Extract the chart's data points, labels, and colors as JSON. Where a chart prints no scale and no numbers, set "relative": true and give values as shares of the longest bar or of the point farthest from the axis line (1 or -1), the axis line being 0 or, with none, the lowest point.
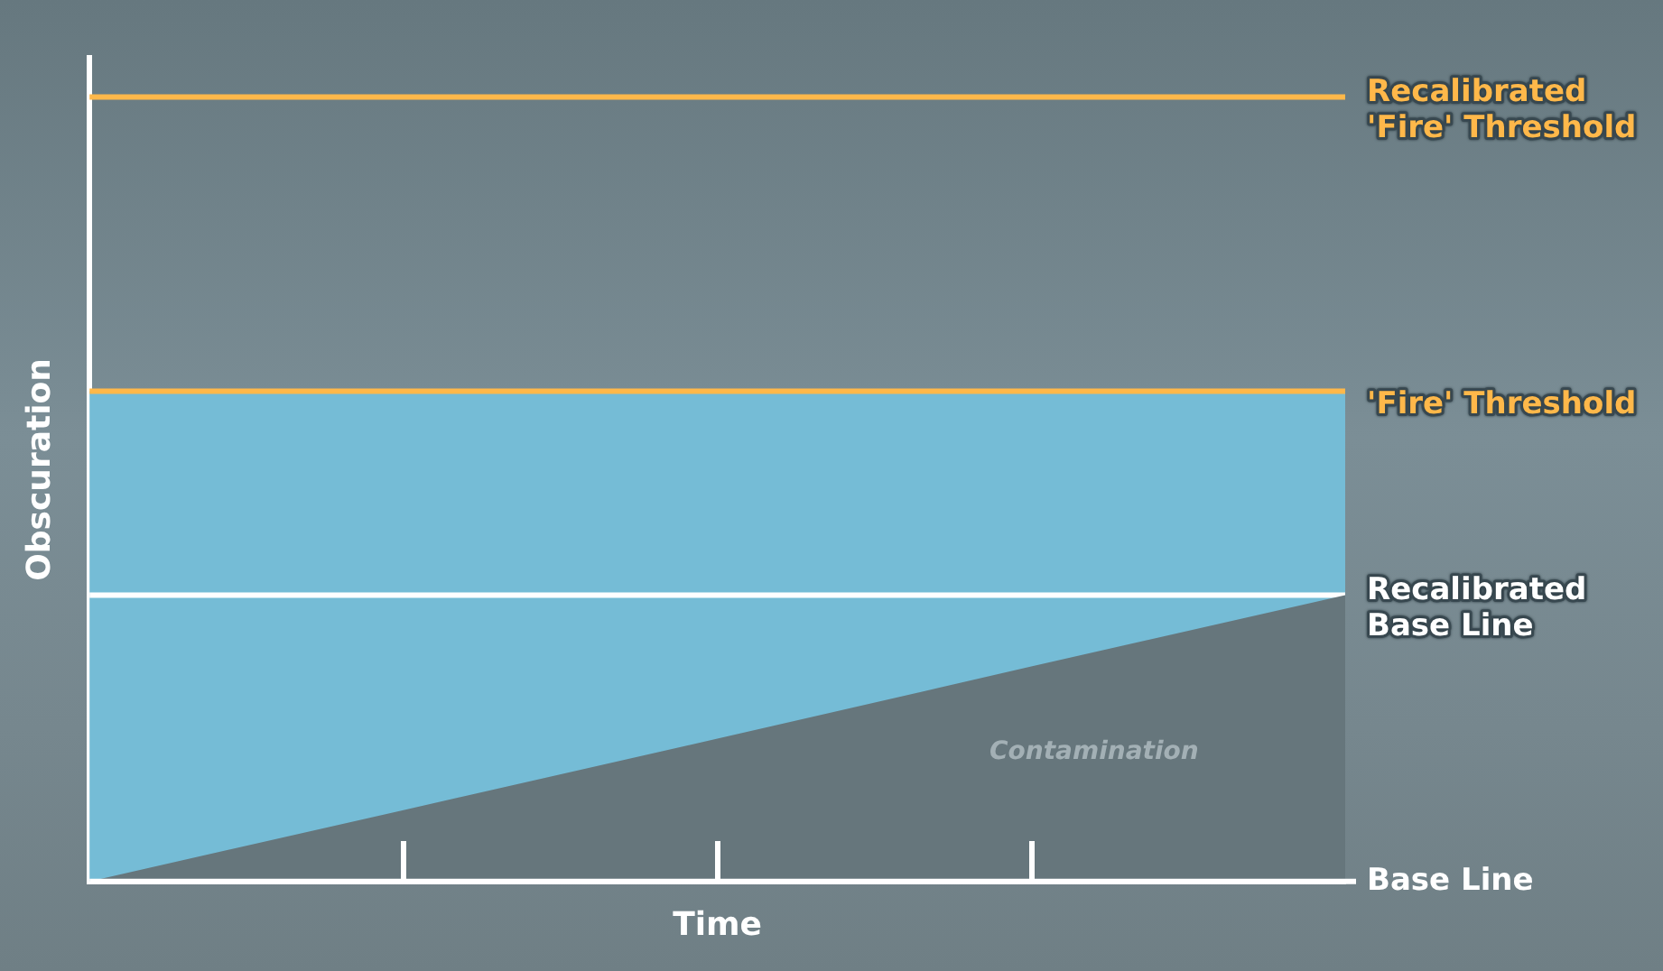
{
  "chart_data": {
    "type": "line",
    "relative": true,
    "xlabel": "Time",
    "ylabel": "Obscuration",
    "categories": [
      null,
      null,
      null,
      null,
      null
    ],
    "series": [
      {
        "name": "Contamination",
        "type": "area",
        "color": "#66767c",
        "values": [
          0,
          0.091,
          0.182,
          0.274,
          0.365
        ]
      },
      {
        "name": "Recalibrated Base Line",
        "color": "#ffffff",
        "values": [
          0.365,
          0.365,
          0.365,
          0.365,
          0.365
        ]
      },
      {
        "name": "'Fire' Threshold",
        "color": "#ffb84a",
        "values": [
          0.625,
          0.625,
          0.625,
          0.625,
          0.625
        ]
      },
      {
        "name": "Recalibrated 'Fire' Threshold",
        "color": "#ffb84a",
        "values": [
          1,
          1,
          1,
          1,
          1
        ]
      }
    ],
    "bands": [
      {
        "axis": "y",
        "from": 0,
        "to": 0.625,
        "color": "#75bcd6"
      }
    ],
    "ref_lines": [
      {
        "axis": "y",
        "value": 0,
        "label": "Base Line",
        "color": "#ffffff"
      }
    ],
    "legend": false,
    "grid": false,
    "marker": "none",
    "line_style": "solid"
  }
}
